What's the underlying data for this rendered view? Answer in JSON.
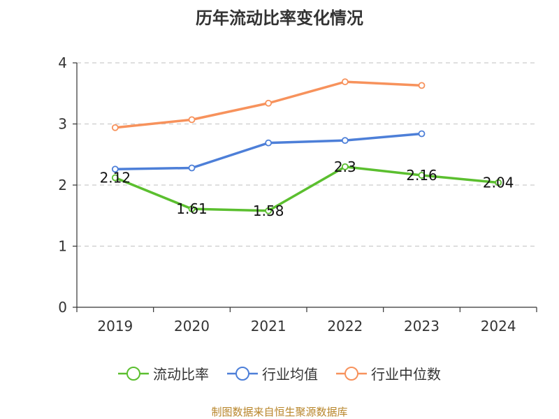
{
  "chart_data": {
    "type": "line",
    "title": "历年流动比率变化情况",
    "categories": [
      "2019",
      "2020",
      "2021",
      "2022",
      "2023",
      "2024"
    ],
    "ylim": [
      0,
      4
    ],
    "yticks": [
      "0",
      "1",
      "2",
      "3",
      "4"
    ],
    "grid": true,
    "legend_position": "bottom",
    "series": [
      {
        "name": "流动比率",
        "color": "#5bbf2f",
        "values": [
          2.12,
          1.61,
          1.58,
          2.3,
          2.16,
          2.04
        ],
        "labels": [
          "2.12",
          "1.61",
          "1.58",
          "2.3",
          "2.16",
          "2.04"
        ]
      },
      {
        "name": "行业均值",
        "color": "#4d7fd8",
        "values": [
          2.26,
          2.28,
          2.69,
          2.73,
          2.84,
          null
        ]
      },
      {
        "name": "行业中位数",
        "color": "#f7925c",
        "values": [
          2.94,
          3.07,
          3.34,
          3.69,
          3.63,
          null
        ]
      }
    ]
  },
  "source": "制图数据来自恒生聚源数据库"
}
